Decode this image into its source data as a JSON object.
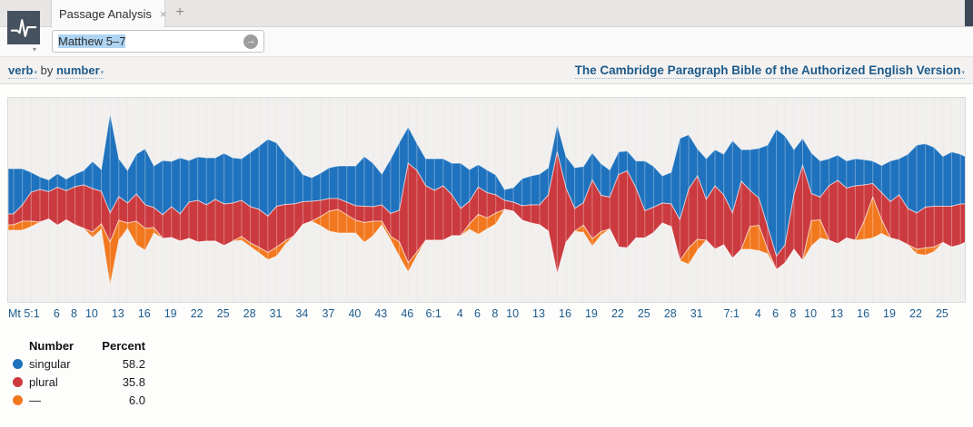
{
  "colors": {
    "singular": "#1f72bd",
    "plural": "#cb3a3e",
    "other": "#f2781f",
    "link_blue": "#1c5a8a",
    "grid_under": "#e5e3e1",
    "grid_over": "rgba(255,255,255,0.33)",
    "plot_bg": "#f1f0ee",
    "app_icon_bg": "#46525f"
  },
  "icons": {
    "close_glyph": "×",
    "plus_glyph": "+",
    "go_glyph": "→",
    "caret_glyph": "▾"
  },
  "tab": {
    "title": "Passage Analysis"
  },
  "search": {
    "value": "Matthew 5–7"
  },
  "toolbar": {
    "facet_left": "verb",
    "facet_join": "by",
    "facet_right": "number",
    "resource_title": "The Cambridge Paragraph Bible of the Authorized English Version"
  },
  "legend": {
    "col_name": "Number",
    "col_percent": "Percent",
    "rows": [
      {
        "label": "singular",
        "percent": "58.2",
        "color_key": "singular"
      },
      {
        "label": "plural",
        "percent": "35.8",
        "color_key": "plural"
      },
      {
        "label": "—",
        "percent": "6.0",
        "color_key": "other"
      }
    ]
  },
  "chart_data": {
    "type": "area",
    "subtype": "streamgraph",
    "title": "verb by number — Matthew 5–7",
    "source": "The Cambridge Paragraph Bible of the Authorized English Version",
    "x_unit": "verse",
    "chapters": [
      {
        "chapter": 5,
        "verses": 48
      },
      {
        "chapter": 6,
        "verses": 34
      },
      {
        "chapter": 7,
        "verses": 29
      }
    ],
    "x_ticks": [
      {
        "label": "Mt 5:1",
        "verse": 1
      },
      {
        "label": "6",
        "verse": 6
      },
      {
        "label": "8",
        "verse": 8
      },
      {
        "label": "10",
        "verse": 10
      },
      {
        "label": "13",
        "verse": 13
      },
      {
        "label": "16",
        "verse": 16
      },
      {
        "label": "19",
        "verse": 19
      },
      {
        "label": "22",
        "verse": 22
      },
      {
        "label": "25",
        "verse": 25
      },
      {
        "label": "28",
        "verse": 28
      },
      {
        "label": "31",
        "verse": 31
      },
      {
        "label": "34",
        "verse": 34
      },
      {
        "label": "37",
        "verse": 37
      },
      {
        "label": "40",
        "verse": 40
      },
      {
        "label": "43",
        "verse": 43
      },
      {
        "label": "46",
        "verse": 46
      },
      {
        "label": "6:1",
        "verse": 49
      },
      {
        "label": "4",
        "verse": 52
      },
      {
        "label": "6",
        "verse": 54
      },
      {
        "label": "8",
        "verse": 56
      },
      {
        "label": "10",
        "verse": 58
      },
      {
        "label": "13",
        "verse": 61
      },
      {
        "label": "16",
        "verse": 64
      },
      {
        "label": "19",
        "verse": 67
      },
      {
        "label": "22",
        "verse": 70
      },
      {
        "label": "25",
        "verse": 73
      },
      {
        "label": "28",
        "verse": 76
      },
      {
        "label": "31",
        "verse": 79
      },
      {
        "label": "7:1",
        "verse": 83
      },
      {
        "label": "4",
        "verse": 86
      },
      {
        "label": "6",
        "verse": 88
      },
      {
        "label": "8",
        "verse": 90
      },
      {
        "label": "10",
        "verse": 92
      },
      {
        "label": "13",
        "verse": 95
      },
      {
        "label": "16",
        "verse": 98
      },
      {
        "label": "19",
        "verse": 101
      },
      {
        "label": "22",
        "verse": 104
      },
      {
        "label": "25",
        "verse": 107
      }
    ],
    "legend_position": "bottom-left",
    "totals_percent": {
      "singular": 58.2,
      "plural": 35.8,
      "other": 6.0
    },
    "series": [
      {
        "name": "singular",
        "values": [
          5.0,
          4.0,
          2.2,
          1.4,
          1.3,
          1.5,
          1.3,
          1.4,
          1.6,
          3.0,
          2.4,
          11.0,
          4.2,
          3.6,
          4.4,
          6.2,
          4.6,
          6.0,
          5.0,
          6.2,
          4.6,
          4.8,
          5.2,
          4.6,
          5.6,
          5.0,
          4.6,
          6.0,
          7.0,
          8.5,
          7.0,
          5.5,
          4.5,
          3.0,
          2.6,
          3.0,
          3.4,
          3.6,
          4.0,
          4.4,
          5.5,
          4.8,
          3.4,
          6.0,
          7.5,
          4.0,
          3.0,
          3.0,
          3.5,
          3.0,
          3.5,
          5.0,
          3.5,
          2.5,
          2.5,
          2.2,
          1.2,
          1.6,
          3.0,
          3.2,
          3.4,
          3.0,
          3.0,
          3.5,
          4.5,
          4.0,
          3.0,
          3.5,
          3.0,
          2.5,
          2.2,
          3.0,
          5.5,
          4.5,
          3.0,
          3.5,
          9.0,
          6.0,
          3.0,
          4.5,
          4.0,
          4.5,
          8.0,
          3.5,
          4.5,
          5.5,
          9.0,
          14.0,
          12.0,
          5.0,
          3.0,
          4.5,
          4.0,
          3.0,
          2.8,
          3.0,
          3.0,
          2.8,
          2.5,
          3.0,
          4.5,
          4.0,
          6.0,
          7.5,
          7.0,
          6.5,
          5.5,
          6.0,
          5.5,
          5.0,
          4.5
        ]
      },
      {
        "name": "plural",
        "values": [
          1.2,
          1.8,
          3.2,
          3.6,
          3.0,
          4.2,
          3.2,
          4.2,
          4.8,
          4.8,
          3.6,
          3.2,
          2.6,
          2.2,
          3.0,
          2.6,
          2.2,
          2.6,
          3.4,
          3.0,
          4.0,
          4.6,
          4.0,
          4.6,
          4.6,
          4.2,
          4.0,
          4.0,
          4.2,
          4.0,
          4.5,
          4.0,
          3.5,
          2.5,
          2.2,
          1.8,
          1.4,
          1.2,
          1.4,
          1.6,
          1.8,
          1.6,
          1.8,
          2.5,
          3.5,
          11.0,
          9.0,
          6.0,
          5.5,
          6.0,
          4.5,
          3.0,
          2.5,
          3.0,
          2.8,
          2.0,
          1.0,
          1.0,
          1.6,
          2.0,
          2.2,
          4.0,
          13.5,
          6.0,
          2.5,
          2.5,
          6.5,
          4.0,
          3.5,
          8.0,
          8.5,
          5.5,
          3.0,
          2.8,
          2.2,
          2.5,
          4.5,
          6.5,
          7.0,
          4.5,
          7.0,
          5.5,
          5.0,
          7.5,
          4.0,
          3.0,
          2.5,
          1.5,
          2.0,
          6.0,
          10.5,
          3.0,
          2.5,
          6.0,
          7.0,
          5.5,
          6.0,
          4.0,
          1.5,
          3.0,
          4.0,
          5.0,
          4.0,
          4.0,
          4.5,
          4.5,
          4.0,
          4.5,
          4.5,
          4.0,
          3.5
        ]
      },
      {
        "name": "other",
        "values": [
          0.6,
          1.0,
          0.6,
          0,
          0,
          0,
          0,
          0,
          0,
          0.6,
          0.6,
          4.8,
          2.2,
          0.6,
          2.6,
          2.4,
          0.6,
          0,
          0,
          0,
          0,
          0,
          0,
          0,
          0,
          0,
          0.4,
          0.4,
          0.6,
          0.8,
          1.0,
          0.4,
          0,
          0,
          0,
          1.0,
          2.2,
          2.6,
          2.0,
          1.4,
          2.2,
          1.6,
          0.4,
          0.4,
          1.6,
          1.0,
          0.4,
          0,
          0,
          0,
          0,
          0,
          0.6,
          2.2,
          1.2,
          1.2,
          0,
          0,
          0,
          0,
          0,
          0,
          0,
          0,
          0,
          0.8,
          0.8,
          0.4,
          0,
          0,
          0,
          0,
          0,
          0,
          0,
          0,
          0,
          1.8,
          1.2,
          0,
          0,
          0,
          0,
          0,
          2.5,
          2.8,
          0.5,
          0,
          0,
          0,
          0,
          2.8,
          2.0,
          0,
          0,
          0,
          0,
          2.0,
          4.5,
          1.5,
          0,
          0,
          0,
          0.5,
          0.8,
          0.5,
          0,
          0,
          0,
          0,
          0
        ]
      }
    ]
  }
}
